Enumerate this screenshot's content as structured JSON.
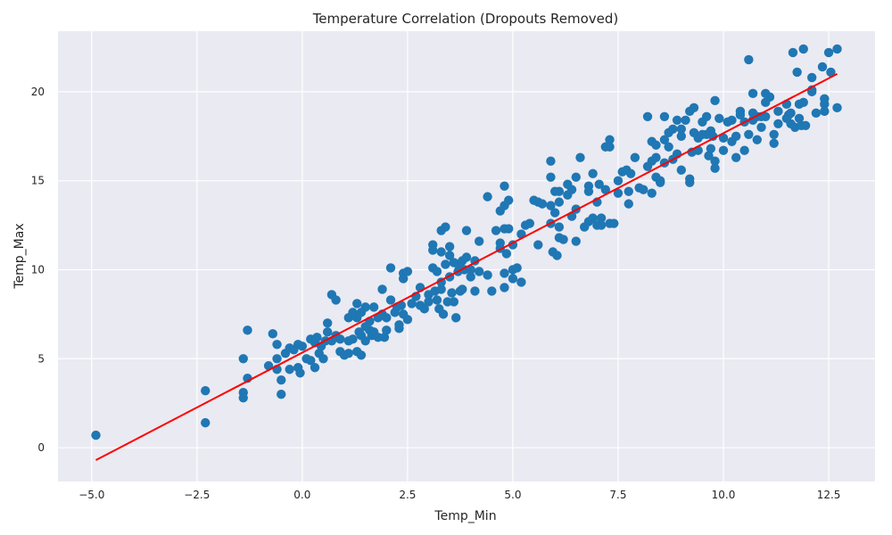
{
  "chart_data": {
    "type": "scatter",
    "title": "Temperature Correlation (Dropouts Removed)",
    "xlabel": "Temp_Min",
    "ylabel": "Temp_Max",
    "xlim": [
      -5.8,
      13.6
    ],
    "ylim": [
      -1.9,
      23.4
    ],
    "x_ticks": [
      {
        "value": -5.0,
        "label": "−5.0"
      },
      {
        "value": -2.5,
        "label": "−2.5"
      },
      {
        "value": 0.0,
        "label": "0.0"
      },
      {
        "value": 2.5,
        "label": "2.5"
      },
      {
        "value": 5.0,
        "label": "5.0"
      },
      {
        "value": 7.5,
        "label": "7.5"
      },
      {
        "value": 10.0,
        "label": "10.0"
      },
      {
        "value": 12.5,
        "label": "12.5"
      }
    ],
    "y_ticks": [
      {
        "value": 0,
        "label": "0"
      },
      {
        "value": 5,
        "label": "5"
      },
      {
        "value": 10,
        "label": "10"
      },
      {
        "value": 15,
        "label": "15"
      },
      {
        "value": 20,
        "label": "20"
      }
    ],
    "grid": true,
    "legend": "none",
    "colors": {
      "background": "#eaeaf2",
      "grid": "#ffffff",
      "points": "#1f77b4",
      "fit_line": "#ff0000"
    },
    "fit_line": {
      "x": [
        -4.9,
        12.7
      ],
      "y": [
        -0.7,
        21.0
      ]
    },
    "points": [
      [
        -4.9,
        0.7
      ],
      [
        -2.3,
        3.2
      ],
      [
        -2.3,
        1.4
      ],
      [
        -1.4,
        5.0
      ],
      [
        -1.4,
        3.1
      ],
      [
        -1.4,
        2.8
      ],
      [
        -1.3,
        6.6
      ],
      [
        -1.3,
        3.9
      ],
      [
        -0.8,
        4.6
      ],
      [
        -0.7,
        6.4
      ],
      [
        -0.6,
        5.8
      ],
      [
        -0.6,
        5.0
      ],
      [
        -0.6,
        4.4
      ],
      [
        -0.5,
        3.8
      ],
      [
        -0.5,
        3.0
      ],
      [
        -0.4,
        5.3
      ],
      [
        -0.3,
        5.6
      ],
      [
        -0.3,
        4.4
      ],
      [
        -0.2,
        5.5
      ],
      [
        -0.1,
        5.8
      ],
      [
        -0.1,
        4.5
      ],
      [
        -0.05,
        4.2
      ],
      [
        0.0,
        5.7
      ],
      [
        0.1,
        5.0
      ],
      [
        0.2,
        6.1
      ],
      [
        0.2,
        4.9
      ],
      [
        0.3,
        5.9
      ],
      [
        0.3,
        4.5
      ],
      [
        0.35,
        6.2
      ],
      [
        0.4,
        5.3
      ],
      [
        0.45,
        5.7
      ],
      [
        0.5,
        5.0
      ],
      [
        0.55,
        6.0
      ],
      [
        0.6,
        7.0
      ],
      [
        0.6,
        6.5
      ],
      [
        0.7,
        8.6
      ],
      [
        0.7,
        6.0
      ],
      [
        0.8,
        8.3
      ],
      [
        0.8,
        6.3
      ],
      [
        0.9,
        5.4
      ],
      [
        0.9,
        6.1
      ],
      [
        1.0,
        5.2
      ],
      [
        1.1,
        5.3
      ],
      [
        1.1,
        7.3
      ],
      [
        1.1,
        6.0
      ],
      [
        1.2,
        7.6
      ],
      [
        1.2,
        6.1
      ],
      [
        1.3,
        8.1
      ],
      [
        1.3,
        7.3
      ],
      [
        1.3,
        5.4
      ],
      [
        1.35,
        6.5
      ],
      [
        1.4,
        7.6
      ],
      [
        1.4,
        6.3
      ],
      [
        1.4,
        5.2
      ],
      [
        1.5,
        7.9
      ],
      [
        1.5,
        6.8
      ],
      [
        1.5,
        6.0
      ],
      [
        1.6,
        7.1
      ],
      [
        1.6,
        6.6
      ],
      [
        1.65,
        6.3
      ],
      [
        1.7,
        7.9
      ],
      [
        1.7,
        6.5
      ],
      [
        1.8,
        7.3
      ],
      [
        1.8,
        6.2
      ],
      [
        1.9,
        8.9
      ],
      [
        1.9,
        7.5
      ],
      [
        1.95,
        6.2
      ],
      [
        2.0,
        7.3
      ],
      [
        2.0,
        6.6
      ],
      [
        2.1,
        10.1
      ],
      [
        2.1,
        8.3
      ],
      [
        2.2,
        7.6
      ],
      [
        2.25,
        7.9
      ],
      [
        2.3,
        6.9
      ],
      [
        2.3,
        6.7
      ],
      [
        2.35,
        8.0
      ],
      [
        2.4,
        9.8
      ],
      [
        2.4,
        9.5
      ],
      [
        2.4,
        7.5
      ],
      [
        2.5,
        9.9
      ],
      [
        2.5,
        7.2
      ],
      [
        2.6,
        8.1
      ],
      [
        2.7,
        8.5
      ],
      [
        2.8,
        9.0
      ],
      [
        2.8,
        8.0
      ],
      [
        2.9,
        7.8
      ],
      [
        3.0,
        8.2
      ],
      [
        3.0,
        8.6
      ],
      [
        3.1,
        11.4
      ],
      [
        3.1,
        11.1
      ],
      [
        3.1,
        10.1
      ],
      [
        3.15,
        8.8
      ],
      [
        3.2,
        9.9
      ],
      [
        3.2,
        8.3
      ],
      [
        3.25,
        7.8
      ],
      [
        3.3,
        12.2
      ],
      [
        3.3,
        11.0
      ],
      [
        3.3,
        9.3
      ],
      [
        3.3,
        8.9
      ],
      [
        3.35,
        7.5
      ],
      [
        3.4,
        12.4
      ],
      [
        3.4,
        10.3
      ],
      [
        3.45,
        8.2
      ],
      [
        3.5,
        11.3
      ],
      [
        3.5,
        10.8
      ],
      [
        3.5,
        9.6
      ],
      [
        3.55,
        8.7
      ],
      [
        3.6,
        10.4
      ],
      [
        3.6,
        8.2
      ],
      [
        3.65,
        7.3
      ],
      [
        3.7,
        10.3
      ],
      [
        3.7,
        9.9
      ],
      [
        3.75,
        8.8
      ],
      [
        3.8,
        10.5
      ],
      [
        3.8,
        8.9
      ],
      [
        3.85,
        10.0
      ],
      [
        3.9,
        12.2
      ],
      [
        3.9,
        10.7
      ],
      [
        4.0,
        10.0
      ],
      [
        4.0,
        9.6
      ],
      [
        4.1,
        10.5
      ],
      [
        4.1,
        8.8
      ],
      [
        4.2,
        11.6
      ],
      [
        4.2,
        9.9
      ],
      [
        4.4,
        14.1
      ],
      [
        4.4,
        9.7
      ],
      [
        4.5,
        8.8
      ],
      [
        4.6,
        12.2
      ],
      [
        4.7,
        13.3
      ],
      [
        4.7,
        11.5
      ],
      [
        4.7,
        11.2
      ],
      [
        4.8,
        14.7
      ],
      [
        4.8,
        13.6
      ],
      [
        4.8,
        12.3
      ],
      [
        4.8,
        9.8
      ],
      [
        4.8,
        9.0
      ],
      [
        4.85,
        10.9
      ],
      [
        4.9,
        13.9
      ],
      [
        4.9,
        12.3
      ],
      [
        5.0,
        11.4
      ],
      [
        5.0,
        10.0
      ],
      [
        5.0,
        9.5
      ],
      [
        5.1,
        10.1
      ],
      [
        5.2,
        12.0
      ],
      [
        5.2,
        9.3
      ],
      [
        5.3,
        12.5
      ],
      [
        5.4,
        12.6
      ],
      [
        5.5,
        13.9
      ],
      [
        5.6,
        13.8
      ],
      [
        5.6,
        11.4
      ],
      [
        5.7,
        13.7
      ],
      [
        5.9,
        16.1
      ],
      [
        5.9,
        15.2
      ],
      [
        5.9,
        13.6
      ],
      [
        5.9,
        12.6
      ],
      [
        5.95,
        11.0
      ],
      [
        6.0,
        14.4
      ],
      [
        6.0,
        13.2
      ],
      [
        6.05,
        10.8
      ],
      [
        6.1,
        14.4
      ],
      [
        6.1,
        13.8
      ],
      [
        6.1,
        12.4
      ],
      [
        6.1,
        11.8
      ],
      [
        6.2,
        11.7
      ],
      [
        6.3,
        14.8
      ],
      [
        6.3,
        14.2
      ],
      [
        6.4,
        14.5
      ],
      [
        6.4,
        13.0
      ],
      [
        6.5,
        15.2
      ],
      [
        6.5,
        13.4
      ],
      [
        6.5,
        11.6
      ],
      [
        6.6,
        16.3
      ],
      [
        6.7,
        12.4
      ],
      [
        6.8,
        14.7
      ],
      [
        6.8,
        14.4
      ],
      [
        6.8,
        12.7
      ],
      [
        6.9,
        15.4
      ],
      [
        6.9,
        12.9
      ],
      [
        7.0,
        13.8
      ],
      [
        7.0,
        12.5
      ],
      [
        7.05,
        14.8
      ],
      [
        7.1,
        12.9
      ],
      [
        7.1,
        12.5
      ],
      [
        7.2,
        16.9
      ],
      [
        7.2,
        14.5
      ],
      [
        7.3,
        17.3
      ],
      [
        7.3,
        16.9
      ],
      [
        7.3,
        12.6
      ],
      [
        7.4,
        12.6
      ],
      [
        7.5,
        15.0
      ],
      [
        7.5,
        14.3
      ],
      [
        7.6,
        15.5
      ],
      [
        7.7,
        15.6
      ],
      [
        7.75,
        14.4
      ],
      [
        7.75,
        13.7
      ],
      [
        7.8,
        15.4
      ],
      [
        7.9,
        16.3
      ],
      [
        8.0,
        14.6
      ],
      [
        8.1,
        14.5
      ],
      [
        8.2,
        18.6
      ],
      [
        8.2,
        15.8
      ],
      [
        8.3,
        17.2
      ],
      [
        8.3,
        16.1
      ],
      [
        8.3,
        14.3
      ],
      [
        8.4,
        17.0
      ],
      [
        8.4,
        16.3
      ],
      [
        8.4,
        15.2
      ],
      [
        8.5,
        14.9
      ],
      [
        8.5,
        15.0
      ],
      [
        8.6,
        16.0
      ],
      [
        8.6,
        18.6
      ],
      [
        8.6,
        17.3
      ],
      [
        8.7,
        17.7
      ],
      [
        8.7,
        16.9
      ],
      [
        8.8,
        17.9
      ],
      [
        8.8,
        16.2
      ],
      [
        8.9,
        18.4
      ],
      [
        8.9,
        16.5
      ],
      [
        9.0,
        17.9
      ],
      [
        9.0,
        17.5
      ],
      [
        9.0,
        15.6
      ],
      [
        9.1,
        18.4
      ],
      [
        9.2,
        18.9
      ],
      [
        9.2,
        15.1
      ],
      [
        9.2,
        14.9
      ],
      [
        9.25,
        16.6
      ],
      [
        9.3,
        19.1
      ],
      [
        9.3,
        17.7
      ],
      [
        9.4,
        17.4
      ],
      [
        9.4,
        16.7
      ],
      [
        9.5,
        18.3
      ],
      [
        9.5,
        17.6
      ],
      [
        9.6,
        18.6
      ],
      [
        9.6,
        17.6
      ],
      [
        9.65,
        16.4
      ],
      [
        9.7,
        17.8
      ],
      [
        9.7,
        16.8
      ],
      [
        9.75,
        17.5
      ],
      [
        9.8,
        19.5
      ],
      [
        9.8,
        16.1
      ],
      [
        9.8,
        15.7
      ],
      [
        9.9,
        18.5
      ],
      [
        10.0,
        17.4
      ],
      [
        10.0,
        16.7
      ],
      [
        10.1,
        18.3
      ],
      [
        10.2,
        18.4
      ],
      [
        10.2,
        17.2
      ],
      [
        10.3,
        17.5
      ],
      [
        10.3,
        16.3
      ],
      [
        10.4,
        18.9
      ],
      [
        10.4,
        18.7
      ],
      [
        10.5,
        18.3
      ],
      [
        10.5,
        16.7
      ],
      [
        10.6,
        21.8
      ],
      [
        10.6,
        17.6
      ],
      [
        10.7,
        19.9
      ],
      [
        10.7,
        18.8
      ],
      [
        10.7,
        18.4
      ],
      [
        10.8,
        18.6
      ],
      [
        10.8,
        17.3
      ],
      [
        10.9,
        18.6
      ],
      [
        10.9,
        18.0
      ],
      [
        11.0,
        19.9
      ],
      [
        11.0,
        19.4
      ],
      [
        11.0,
        18.6
      ],
      [
        11.1,
        19.7
      ],
      [
        11.2,
        17.6
      ],
      [
        11.2,
        17.1
      ],
      [
        11.3,
        18.9
      ],
      [
        11.3,
        18.2
      ],
      [
        11.5,
        19.3
      ],
      [
        11.5,
        18.5
      ],
      [
        11.55,
        18.7
      ],
      [
        11.6,
        18.8
      ],
      [
        11.6,
        18.2
      ],
      [
        11.65,
        22.2
      ],
      [
        11.7,
        18.0
      ],
      [
        11.75,
        21.1
      ],
      [
        11.8,
        19.3
      ],
      [
        11.8,
        18.5
      ],
      [
        11.85,
        18.1
      ],
      [
        11.9,
        22.4
      ],
      [
        11.9,
        19.4
      ],
      [
        11.95,
        18.1
      ],
      [
        12.1,
        20.8
      ],
      [
        12.1,
        20.1
      ],
      [
        12.1,
        20.0
      ],
      [
        12.2,
        18.8
      ],
      [
        12.35,
        21.4
      ],
      [
        12.4,
        19.6
      ],
      [
        12.4,
        19.3
      ],
      [
        12.4,
        18.9
      ],
      [
        12.5,
        22.2
      ],
      [
        12.55,
        21.1
      ],
      [
        12.7,
        22.4
      ],
      [
        12.7,
        19.1
      ]
    ]
  }
}
